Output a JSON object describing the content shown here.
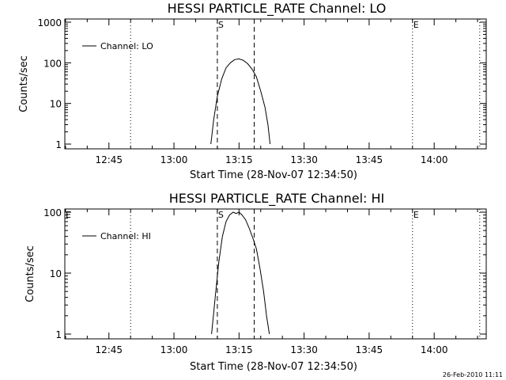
{
  "footer": {
    "timestamp": "26-Feb-2010 11:11"
  },
  "chart_data": [
    {
      "type": "line",
      "title": "HESSI PARTICLE_RATE Channel: LO",
      "xlabel": "Start Time (28-Nov-07 12:34:50)",
      "ylabel": "Counts/sec",
      "yscale": "log",
      "ylim": [
        1,
        1000
      ],
      "xlim": [
        "12:34:50",
        "14:12:00"
      ],
      "xtick_labels": [
        "12:45",
        "13:00",
        "13:15",
        "13:30",
        "13:45",
        "14:00"
      ],
      "ytick_labels": [
        "1",
        "10",
        "100",
        "1000"
      ],
      "legend": {
        "position": "top-left",
        "entries": [
          "Channel: LO"
        ]
      },
      "markers": [
        {
          "label": "",
          "x": "12:50:00",
          "style": "dotted"
        },
        {
          "label": "S",
          "x": "13:10:00",
          "style": "dashed"
        },
        {
          "label": "",
          "x": "13:18:30",
          "style": "dashed"
        },
        {
          "label": "E",
          "x": "13:55:00",
          "style": "dotted"
        },
        {
          "label": "",
          "x": "14:10:30",
          "style": "dotted"
        }
      ],
      "series": [
        {
          "name": "Channel: LO",
          "x": [
            "13:08:30",
            "13:09:10",
            "13:10:00",
            "13:11:00",
            "13:12:00",
            "13:13:00",
            "13:14:00",
            "13:15:00",
            "13:16:00",
            "13:17:00",
            "13:18:00",
            "13:19:00",
            "13:20:00",
            "13:21:00",
            "13:21:40",
            "13:22:10"
          ],
          "y": [
            1,
            4,
            15,
            40,
            75,
            100,
            120,
            125,
            115,
            95,
            70,
            45,
            20,
            8,
            3,
            1
          ]
        }
      ]
    },
    {
      "type": "line",
      "title": "HESSI PARTICLE_RATE Channel: HI",
      "xlabel": "Start Time (28-Nov-07 12:34:50)",
      "ylabel": "Counts/sec",
      "yscale": "log",
      "ylim": [
        1,
        100
      ],
      "xlim": [
        "12:34:50",
        "14:12:00"
      ],
      "xtick_labels": [
        "12:45",
        "13:00",
        "13:15",
        "13:30",
        "13:45",
        "14:00"
      ],
      "ytick_labels": [
        "1",
        "10",
        "100"
      ],
      "legend": {
        "position": "top-left",
        "entries": [
          "Channel: HI"
        ]
      },
      "markers": [
        {
          "label": "E",
          "x": "12:34:50",
          "style": "none"
        },
        {
          "label": "",
          "x": "12:50:00",
          "style": "dotted"
        },
        {
          "label": "S",
          "x": "13:10:00",
          "style": "dashed"
        },
        {
          "label": "",
          "x": "13:18:30",
          "style": "dashed"
        },
        {
          "label": "E",
          "x": "13:55:00",
          "style": "dotted"
        },
        {
          "label": "",
          "x": "14:10:30",
          "style": "dotted"
        }
      ],
      "series": [
        {
          "name": "Channel: HI",
          "x": [
            "13:08:40",
            "13:09:30",
            "13:10:20",
            "13:11:10",
            "13:12:00",
            "13:12:50",
            "13:13:40",
            "13:14:20",
            "13:15:00",
            "13:15:40",
            "13:16:30",
            "13:17:20",
            "13:18:10",
            "13:19:00",
            "13:19:50",
            "13:20:40",
            "13:21:20",
            "13:22:00"
          ],
          "y": [
            1,
            4,
            15,
            40,
            70,
            90,
            100,
            95,
            100,
            90,
            75,
            55,
            38,
            25,
            12,
            5,
            2,
            1
          ]
        }
      ]
    }
  ]
}
